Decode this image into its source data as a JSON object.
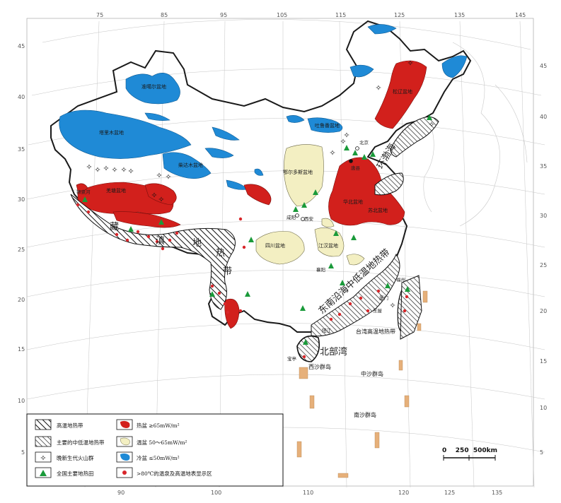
{
  "axes": {
    "top_lon": [
      "75",
      "85",
      "95",
      "105",
      "115",
      "125",
      "135",
      "145"
    ],
    "bottom_lon": [
      "90",
      "100",
      "110",
      "120",
      "125",
      "135"
    ],
    "left_lat": [
      "45",
      "40",
      "35",
      "30",
      "25",
      "20",
      "15",
      "10",
      "5"
    ],
    "right_lat": [
      "45",
      "40",
      "35",
      "30",
      "25",
      "20",
      "15",
      "10",
      "5"
    ]
  },
  "basins": {
    "junggar": "准噶尔盆地",
    "tarim": "塔里木盆地",
    "qaidam": "柴达木盆地",
    "turpan": "吐鲁番盆地",
    "songliao": "松辽盆地",
    "ordos": "鄂尔多斯盆地",
    "sichuan": "四川盆地",
    "jianghan": "江汉盆地",
    "north_china": "华北盆地",
    "subei": "苏北盆地",
    "qiangtang": "羌塘盆地"
  },
  "zones": {
    "tibet_1": "藏",
    "tibet_2": "滇",
    "tibet_3": "地",
    "tibet_4": "热",
    "tibet_5": "带",
    "east_1": "东南沿海中低温地热带",
    "east_2": "环渤海",
    "east_3": "北部湾",
    "taiwan": "台湾高温地热带"
  },
  "cities": {
    "beijing": "北京",
    "tangshan": "唐县",
    "xian": "西安",
    "xianyang": "咸阳",
    "xiangyang": "襄阳",
    "yangjiang": "阳江",
    "baoting": "宝亭",
    "dongpu": "东屋",
    "fuzhou": "福州",
    "shiquanhe": "狮泉河",
    "xiamen": "厦门"
  },
  "islands": {
    "xisha": "西沙群岛",
    "zhongsha": "中沙群岛",
    "nansha": "南沙群岛"
  },
  "legend": {
    "high_temp_belt": "高温地热带",
    "mid_low_belt": "主要的中低温地热带",
    "volcano": "晚新生代火山群",
    "geo_field": "全国主要地热田",
    "hot_basin": "热盆 ≥65mW/m²",
    "warm_basin": "温盆 50～65mW/m²",
    "cold_basin": "冷盆 ≤50mW/m²",
    "hot_spring": ">80℃的温泉及高温地表显示区"
  },
  "scale": {
    "label": "0    250  500km"
  },
  "colors": {
    "hot": "#d2201c",
    "warm": "#f3efc2",
    "cold": "#1f8ad6",
    "field": "#1a9a3a",
    "spring": "#d8262a",
    "border": "#1a1a1a",
    "graticule": "#bbbbbb"
  }
}
